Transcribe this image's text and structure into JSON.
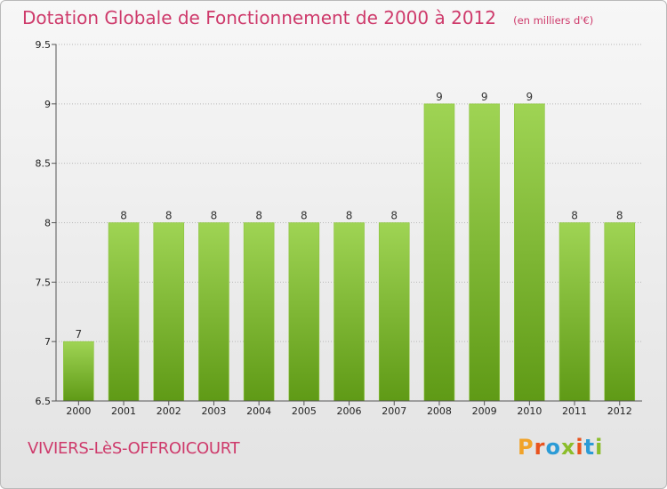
{
  "header": {
    "title": "Dotation Globale de Fonctionnement de 2000 à 2012",
    "unit": "(en milliers d'€)"
  },
  "footer": {
    "commune": "VIVIERS-LèS-OFFROICOURT",
    "brand": "Proxiti",
    "brand_letters": [
      "P",
      "r",
      "o",
      "x",
      "i",
      "t",
      "i"
    ],
    "brand_colors": [
      "#f1a329",
      "#e8531e",
      "#2b9bd6",
      "#8bbd2a",
      "#e8531e",
      "#2b9bd6",
      "#8bbd2a"
    ]
  },
  "colors": {
    "title": "#ce3a6b",
    "bar_top": "#9fd454",
    "bar_bottom": "#5f9a16"
  },
  "chart_data": {
    "type": "bar",
    "categories": [
      "2000",
      "2001",
      "2002",
      "2003",
      "2004",
      "2005",
      "2006",
      "2007",
      "2008",
      "2009",
      "2010",
      "2011",
      "2012"
    ],
    "values": [
      7,
      8,
      8,
      8,
      8,
      8,
      8,
      8,
      9,
      9,
      9,
      8,
      8
    ],
    "data_labels": [
      "7",
      "8",
      "8",
      "8",
      "8",
      "8",
      "8",
      "8",
      "9",
      "9",
      "9",
      "8",
      "8"
    ],
    "ylim": [
      6.5,
      9.5
    ],
    "yticks": [
      6.5,
      7,
      7.5,
      8,
      8.5,
      9,
      9.5
    ],
    "ytick_labels": [
      "6.5",
      "7",
      "7.5",
      "8",
      "8.5",
      "9",
      "9.5"
    ],
    "grid": "horizontal dotted",
    "xlabel": "",
    "ylabel": ""
  }
}
